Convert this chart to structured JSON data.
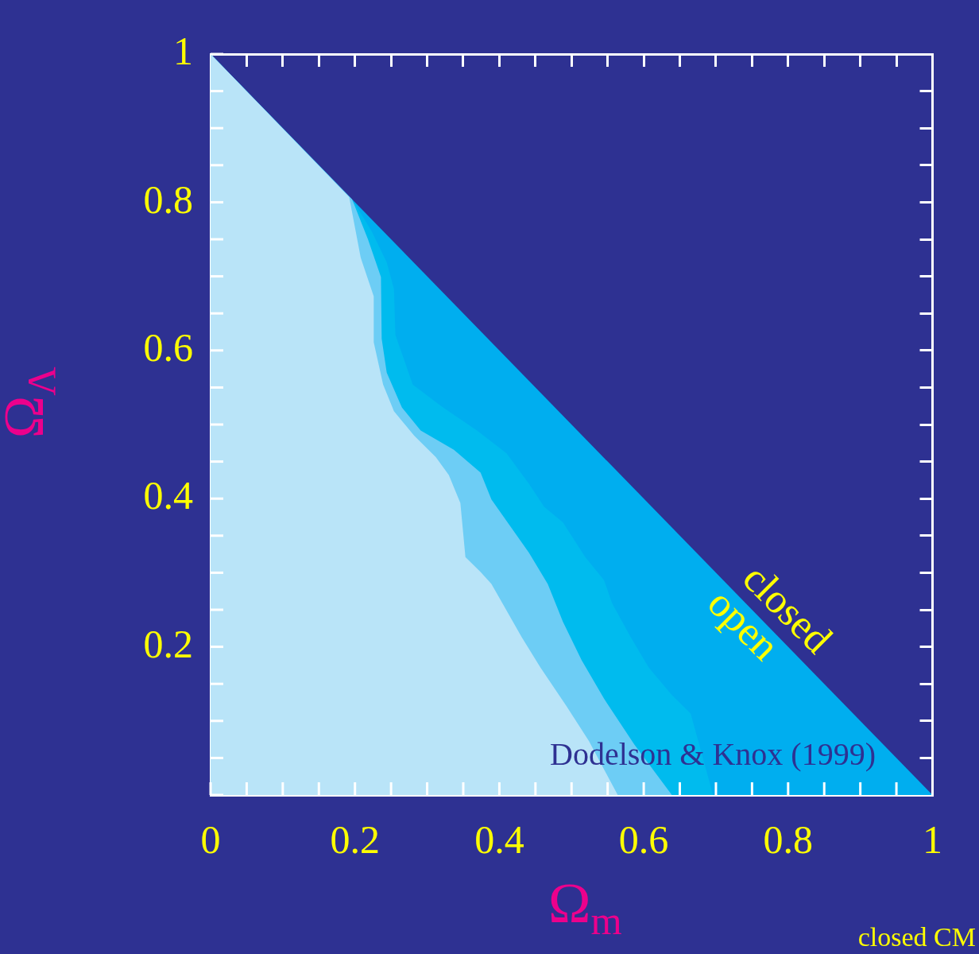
{
  "chart_data": {
    "type": "area",
    "xlabel": "Ω$_{m}$",
    "ylabel": "Ω$_{Λ}$",
    "xlim": [
      0,
      1
    ],
    "ylim": [
      0,
      1
    ],
    "xticks": [
      0,
      {
        "value": 0.05,
        "label": null
      },
      {
        "value": 0.1,
        "label": null
      },
      {
        "value": 0.15,
        "label": null
      },
      0.2,
      {
        "value": 0.25,
        "label": null
      },
      {
        "value": 0.3,
        "label": null
      },
      {
        "value": 0.35,
        "label": null
      },
      0.4,
      {
        "value": 0.45,
        "label": null
      },
      {
        "value": 0.5,
        "label": null
      },
      {
        "value": 0.55,
        "label": null
      },
      0.6,
      {
        "value": 0.65,
        "label": null
      },
      {
        "value": 0.7,
        "label": null
      },
      {
        "value": 0.75,
        "label": null
      },
      0.8,
      {
        "value": 0.85,
        "label": null
      },
      {
        "value": 0.9,
        "label": null
      },
      {
        "value": 0.95,
        "label": null
      },
      1
    ],
    "yticks": [
      {
        "value": 0,
        "label": null
      },
      {
        "value": 0.05,
        "label": null
      },
      {
        "value": 0.1,
        "label": null
      },
      {
        "value": 0.15,
        "label": null
      },
      0.2,
      {
        "value": 0.25,
        "label": null
      },
      {
        "value": 0.3,
        "label": null
      },
      {
        "value": 0.35,
        "label": null
      },
      0.4,
      {
        "value": 0.45,
        "label": null
      },
      {
        "value": 0.5,
        "label": null
      },
      {
        "value": 0.55,
        "label": null
      },
      0.6,
      {
        "value": 0.65,
        "label": null
      },
      {
        "value": 0.7,
        "label": null
      },
      {
        "value": 0.75,
        "label": null
      },
      0.8,
      {
        "value": 0.85,
        "label": null
      },
      {
        "value": 0.9,
        "label": null
      },
      {
        "value": 0.95,
        "label": null
      },
      1
    ],
    "grid": false,
    "legend": false,
    "series": [
      {
        "color": "#00aeef",
        "x": [
          0,
          1
        ],
        "values": [
          1,
          0
        ]
      },
      {
        "color": "#00bbee",
        "x": [
          0,
          0.2,
          0.223,
          0.244,
          0.254,
          0.256,
          0.28,
          0.322,
          0.369,
          0.41,
          0.441,
          0.462,
          0.488,
          0.519,
          0.545,
          0.556,
          0.582,
          0.607,
          0.639,
          0.665,
          0.696
        ],
        "values": [
          1,
          0.798,
          0.761,
          0.719,
          0.683,
          0.621,
          0.554,
          0.523,
          0.492,
          0.461,
          0.42,
          0.389,
          0.368,
          0.321,
          0.29,
          0.259,
          0.213,
          0.172,
          0.135,
          0.11,
          0
        ]
      },
      {
        "color": "#6dcdf5",
        "x": [
          0,
          0.196,
          0.218,
          0.236,
          0.237,
          0.244,
          0.265,
          0.291,
          0.337,
          0.374,
          0.389,
          0.415,
          0.441,
          0.467,
          0.488,
          0.514,
          0.545,
          0.587,
          0.639
        ],
        "values": [
          1,
          0.804,
          0.75,
          0.699,
          0.616,
          0.57,
          0.523,
          0.492,
          0.466,
          0.435,
          0.399,
          0.363,
          0.327,
          0.285,
          0.234,
          0.182,
          0.13,
          0.068,
          0
        ]
      },
      {
        "color": "#b9e4f8",
        "x": [
          0,
          0.192,
          0.208,
          0.226,
          0.226,
          0.239,
          0.254,
          0.282,
          0.312,
          0.33,
          0.346,
          0.353,
          0.374,
          0.389,
          0.41,
          0.431,
          0.457,
          0.493,
          0.524,
          0.564
        ],
        "values": [
          1,
          0.807,
          0.725,
          0.673,
          0.611,
          0.554,
          0.518,
          0.485,
          0.456,
          0.432,
          0.394,
          0.321,
          0.301,
          0.285,
          0.249,
          0.213,
          0.172,
          0.12,
          0.073,
          0
        ]
      }
    ],
    "annotations": [
      "closed",
      "open",
      "Dodelson & Knox (1999)",
      "closed CM"
    ]
  }
}
